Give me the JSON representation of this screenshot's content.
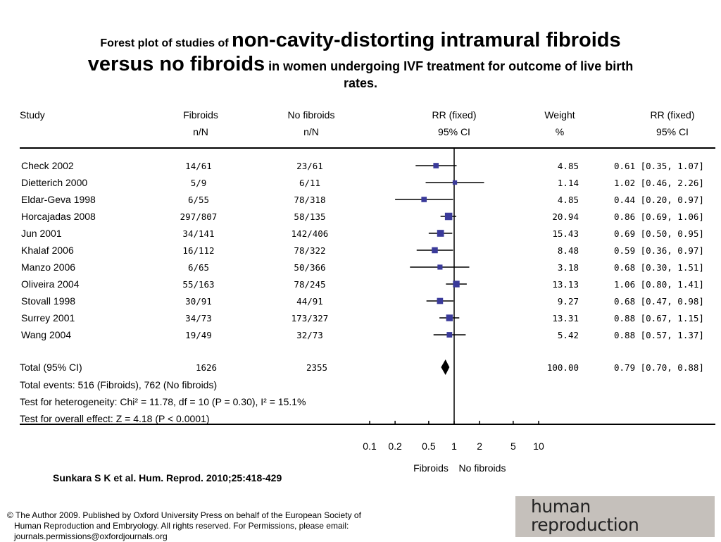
{
  "title": {
    "part1": "Forest plot of studies of ",
    "part2": "non-cavity-distorting intramural fibroids",
    "part3": "versus no fibroids",
    "part4": " in women undergoing IVF treatment for outcome of live birth",
    "part5": "rates."
  },
  "chart_data": {
    "type": "forest",
    "headers": {
      "study": "Study",
      "fibroids": [
        "Fibroids",
        "n/N"
      ],
      "no_fibroids": [
        "No fibroids",
        "n/N"
      ],
      "rr_plot": [
        "RR (fixed)",
        "95% CI"
      ],
      "weight": [
        "Weight",
        "%"
      ],
      "rr_text": [
        "RR (fixed)",
        "95% CI"
      ]
    },
    "studies": [
      {
        "name": "Check 2002",
        "fibroids": "14/61",
        "no_fibroids": "23/61",
        "weight": "4.85",
        "rr": 0.61,
        "lo": 0.35,
        "hi": 1.07,
        "rr_text": "0.61 [0.35, 1.07]"
      },
      {
        "name": "Dietterich 2000",
        "fibroids": "5/9",
        "no_fibroids": "6/11",
        "weight": "1.14",
        "rr": 1.02,
        "lo": 0.46,
        "hi": 2.26,
        "rr_text": "1.02 [0.46, 2.26]"
      },
      {
        "name": "Eldar-Geva 1998",
        "fibroids": "6/55",
        "no_fibroids": "78/318",
        "weight": "4.85",
        "rr": 0.44,
        "lo": 0.2,
        "hi": 0.97,
        "rr_text": "0.44 [0.20, 0.97]"
      },
      {
        "name": "Horcajadas 2008",
        "fibroids": "297/807",
        "no_fibroids": "58/135",
        "weight": "20.94",
        "rr": 0.86,
        "lo": 0.69,
        "hi": 1.06,
        "rr_text": "0.86 [0.69, 1.06]"
      },
      {
        "name": "Jun 2001",
        "fibroids": "34/141",
        "no_fibroids": "142/406",
        "weight": "15.43",
        "rr": 0.69,
        "lo": 0.5,
        "hi": 0.95,
        "rr_text": "0.69 [0.50, 0.95]"
      },
      {
        "name": "Khalaf 2006",
        "fibroids": "16/112",
        "no_fibroids": "78/322",
        "weight": "8.48",
        "rr": 0.59,
        "lo": 0.36,
        "hi": 0.97,
        "rr_text": "0.59 [0.36, 0.97]"
      },
      {
        "name": "Manzo 2006",
        "fibroids": "6/65",
        "no_fibroids": "50/366",
        "weight": "3.18",
        "rr": 0.68,
        "lo": 0.3,
        "hi": 1.51,
        "rr_text": "0.68 [0.30, 1.51]"
      },
      {
        "name": "Oliveira 2004",
        "fibroids": "55/163",
        "no_fibroids": "78/245",
        "weight": "13.13",
        "rr": 1.06,
        "lo": 0.8,
        "hi": 1.41,
        "rr_text": "1.06 [0.80, 1.41]"
      },
      {
        "name": "Stovall 1998",
        "fibroids": "30/91",
        "no_fibroids": "44/91",
        "weight": "9.27",
        "rr": 0.68,
        "lo": 0.47,
        "hi": 0.98,
        "rr_text": "0.68 [0.47, 0.98]"
      },
      {
        "name": "Surrey 2001",
        "fibroids": "34/73",
        "no_fibroids": "173/327",
        "weight": "13.31",
        "rr": 0.88,
        "lo": 0.67,
        "hi": 1.15,
        "rr_text": "0.88 [0.67, 1.15]"
      },
      {
        "name": "Wang 2004",
        "fibroids": "19/49",
        "no_fibroids": "32/73",
        "weight": "5.42",
        "rr": 0.88,
        "lo": 0.57,
        "hi": 1.37,
        "rr_text": "0.88 [0.57, 1.37]"
      }
    ],
    "total": {
      "name": "Total (95% CI)",
      "fibroids": "1626",
      "no_fibroids": "2355",
      "weight": "100.00",
      "rr": 0.79,
      "lo": 0.7,
      "hi": 0.88,
      "rr_text": "0.79 [0.70, 0.88]"
    },
    "notes": [
      "Total events: 516 (Fibroids), 762 (No fibroids)",
      "Test for heterogeneity: Chi² = 11.78, df = 10 (P = 0.30), I² = 15.1%",
      "Test for overall effect: Z = 4.18 (P < 0.0001)"
    ],
    "x_axis": {
      "scale": "log",
      "range": [
        0.1,
        10
      ],
      "ticks": [
        0.1,
        0.2,
        0.5,
        1,
        2,
        5,
        10
      ],
      "tick_labels": [
        "0.1",
        "0.2",
        "0.5",
        "1",
        "2",
        "5",
        "10"
      ]
    },
    "favours_left": "Fibroids",
    "favours_right": "No fibroids",
    "colors": {
      "square": "#3a3a9a",
      "line": "#000000"
    }
  },
  "citation": "Sunkara S K et al. Hum. Reprod. 2010;25:418-429",
  "copyright": [
    "© The Author 2009. Published by Oxford University Press on behalf of the European Society of",
    "Human Reproduction and Embryology. All rights reserved. For Permissions, please email:",
    "journals.permissions@oxfordjournals.org"
  ],
  "logo": [
    "human",
    "reproduction"
  ]
}
